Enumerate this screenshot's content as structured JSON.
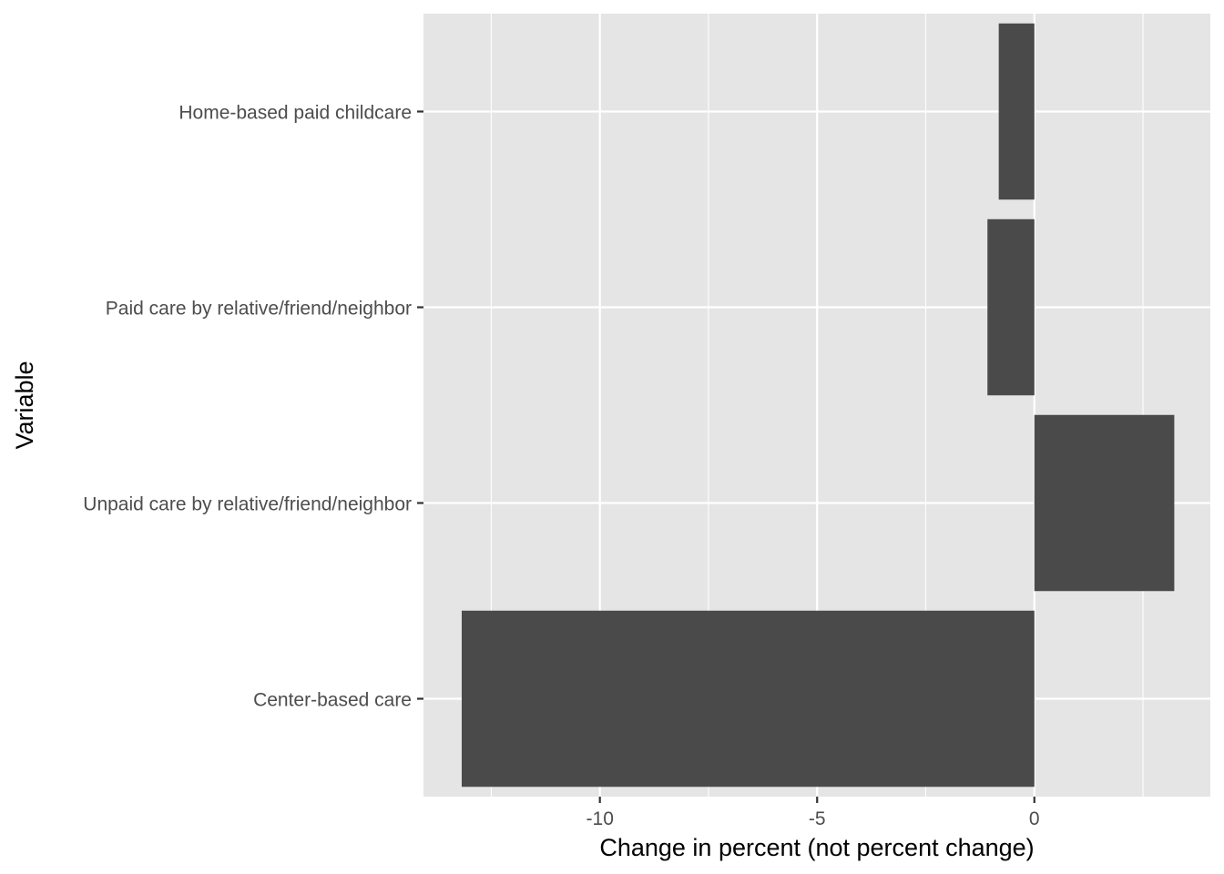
{
  "chart_data": {
    "type": "bar",
    "orientation": "horizontal",
    "categories": [
      "Home-based paid childcare",
      "Paid care by relative/friend/neighbor",
      "Unpaid care by relative/friend/neighbor",
      "Center-based care"
    ],
    "values": [
      -0.82,
      -1.08,
      3.22,
      -13.18
    ],
    "xlabel": "Change in percent (not percent change)",
    "ylabel": "Variable",
    "xlim": [
      -14.06,
      4.05
    ],
    "x_ticks": [
      -10,
      -5,
      0
    ],
    "x_tick_labels": [
      "-10",
      "-5",
      "0"
    ],
    "grid": true,
    "colors": {
      "panel": "#e5e5e5",
      "grid": "#ffffff",
      "bar": "#4a4a4a",
      "tick_text": "#4d4d4d",
      "title_text": "#000000"
    }
  }
}
